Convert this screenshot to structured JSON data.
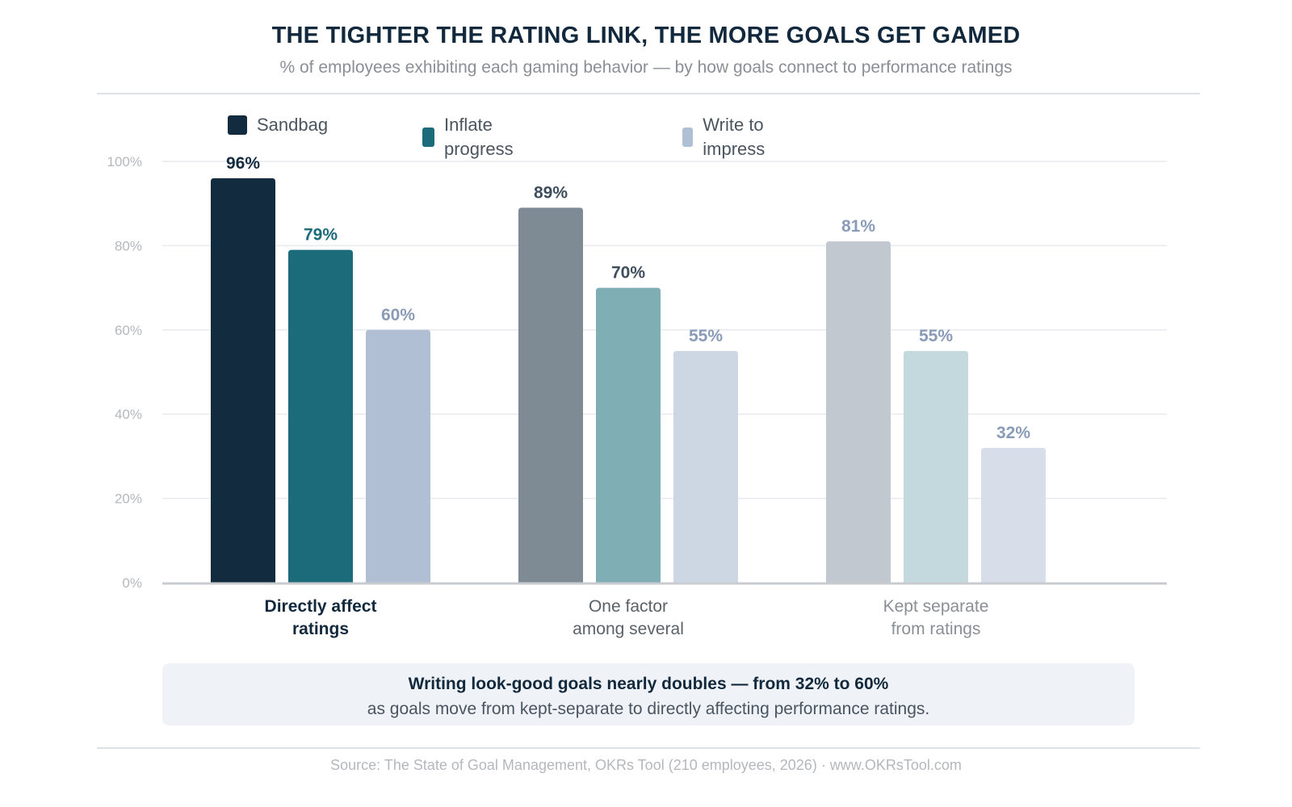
{
  "header": {
    "title": "THE TIGHTER THE RATING LINK, THE MORE GOALS GET GAMED",
    "subtitle": "% of employees exhibiting each gaming behavior — by how goals connect to performance ratings"
  },
  "chart_data": {
    "type": "bar",
    "categories": [
      [
        "Directly affect",
        "ratings"
      ],
      [
        "One factor",
        "among several"
      ],
      [
        "Kept separate",
        "from ratings"
      ]
    ],
    "series": [
      {
        "name": "Sandbag",
        "values": [
          96,
          89,
          81
        ],
        "color": "#132b3f"
      },
      {
        "name": "Inflate progress",
        "values": [
          79,
          70,
          55
        ],
        "color": "#1b6b7b"
      },
      {
        "name": "Write to impress",
        "values": [
          60,
          55,
          32
        ],
        "color": "#b0bfd4"
      }
    ],
    "ylim": [
      0,
      100
    ],
    "yticks": [
      0,
      20,
      40,
      60,
      80,
      100
    ],
    "tick_suffix": "%",
    "value_suffix": "%",
    "grid": true,
    "legend": "top-left",
    "bar_colors": [
      [
        "#132b3f",
        "#1b6b7b",
        "#b0bfd4"
      ],
      [
        "#7e8b95",
        "#80aeb5",
        "#cdd6e3"
      ],
      [
        "#c1c8cf",
        "#c4d9dd",
        "#d8dee9"
      ]
    ],
    "label_colors": [
      [
        "#132b3f",
        "#1b6b7b",
        "#8a9bb8"
      ],
      [
        "#3f4e5c",
        "#3f4e5c",
        "#8a9bb8"
      ],
      [
        "#8a9bb8",
        "#8a9bb8",
        "#8a9bb8"
      ]
    ],
    "category_label_colors": [
      "#12293d",
      "#5a6268",
      "#8a8f95"
    ],
    "category_label_bold": [
      true,
      false,
      false
    ]
  },
  "callout": {
    "headline": "Writing look-good goals nearly doubles — from 32% to 60%",
    "body": "as goals move from kept-separate to directly affecting performance ratings."
  },
  "source": "Source: The State of Goal Management, OKRs Tool (210 employees, 2026) · www.OKRsTool.com"
}
